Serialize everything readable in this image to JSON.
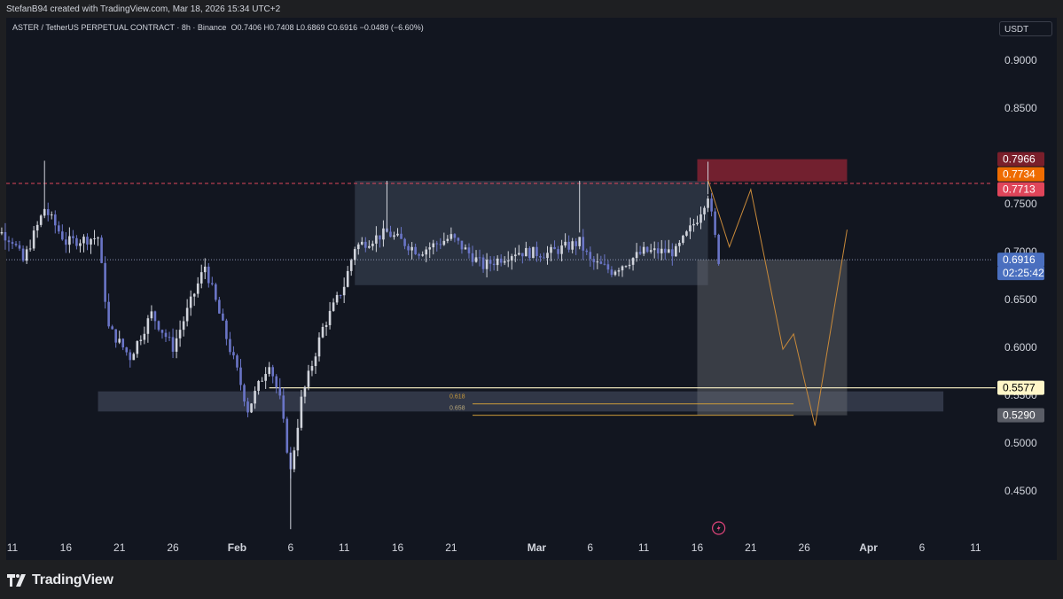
{
  "header": {
    "attribution": "StefanB94 created with TradingView.com, Mar 18, 2026 15:34 UTC+2"
  },
  "legend": {
    "symbol": "ASTER / TetherUS PERPETUAL CONTRACT · 8h · Binance",
    "open": "O0.7406",
    "high": "H0.7408",
    "low": "L0.6869",
    "close": "C0.6916",
    "change": "−0.0489 (−6.60%)"
  },
  "currency_button": "USDT",
  "footer": {
    "brand": "TradingView"
  },
  "colors": {
    "background": "#121620",
    "candle": "#d1d4dc",
    "candle_down": "#6a75c7",
    "stop_zone": "#b2283a",
    "target_path": "#c98a3a",
    "fib_line": "#c99a3a",
    "support_line": "#fff6c8"
  },
  "chart_data": {
    "type": "candlestick",
    "timeframe": "8h",
    "y_axis": {
      "ticks": [
        "0.9000",
        "0.8500",
        "0.7500",
        "0.7000",
        "0.6500",
        "0.6000",
        "0.5500",
        "0.5000",
        "0.4500"
      ],
      "tick_values": [
        0.9,
        0.85,
        0.75,
        0.7,
        0.65,
        0.6,
        0.55,
        0.5,
        0.45
      ],
      "range": [
        0.4,
        0.92
      ]
    },
    "x_axis": {
      "ticks": [
        "11",
        "16",
        "21",
        "26",
        "Feb",
        "6",
        "11",
        "16",
        "21",
        "Mar",
        "6",
        "11",
        "16",
        "21",
        "26",
        "Apr",
        "6",
        "11"
      ],
      "tick_dates": [
        "2026-01-11",
        "2026-01-16",
        "2026-01-21",
        "2026-01-26",
        "2026-02-01",
        "2026-02-06",
        "2026-02-11",
        "2026-02-16",
        "2026-02-21",
        "2026-03-01",
        "2026-03-06",
        "2026-03-11",
        "2026-03-16",
        "2026-03-21",
        "2026-03-26",
        "2026-04-01",
        "2026-04-06",
        "2026-04-11"
      ]
    },
    "price_labels": [
      {
        "value": "0.7966",
        "kind": "stop",
        "bg": "#7a1f2b",
        "fg": "#ffffff"
      },
      {
        "value": "0.7734",
        "kind": "entry",
        "bg": "#ef6c00",
        "fg": "#ffffff"
      },
      {
        "value": "0.7713",
        "kind": "prev_high",
        "bg": "#e0455a",
        "fg": "#ffffff"
      },
      {
        "value": "0.6916",
        "kind": "last",
        "bg": "#4a6fbf",
        "fg": "#ffffff"
      },
      {
        "value": "02:25:42",
        "kind": "countdown",
        "bg": "#4a6fbf",
        "fg": "#ffffff"
      },
      {
        "value": "0.5577",
        "kind": "support",
        "bg": "#fff6c8",
        "fg": "#000000"
      },
      {
        "value": "0.5290",
        "kind": "target",
        "bg": "#5a5d66",
        "fg": "#ffffff"
      }
    ],
    "fib_levels": [
      {
        "label": "0.618",
        "price": 0.541
      },
      {
        "label": "0.658",
        "price": 0.529
      }
    ],
    "zones": [
      {
        "name": "range-box",
        "start": "2026-02-12",
        "end": "2026-03-17",
        "low": 0.665,
        "high": 0.774
      },
      {
        "name": "demand-box",
        "start": "2026-01-19",
        "end": "2026-04-08",
        "low": 0.533,
        "high": 0.554
      },
      {
        "name": "short-stop-zone",
        "start": "2026-03-16",
        "end": "2026-03-30",
        "low": 0.7734,
        "high": 0.7966
      },
      {
        "name": "short-target-zone",
        "start": "2026-03-16",
        "end": "2026-03-30",
        "low": 0.529,
        "high": 0.6916
      }
    ],
    "horizontal_lines": [
      {
        "name": "prev-high-dashed",
        "price": 0.7713,
        "style": "dashed"
      },
      {
        "name": "support-line",
        "price": 0.5577,
        "style": "solid"
      }
    ],
    "projection_path": [
      {
        "date": "2026-03-17",
        "price": 0.775
      },
      {
        "date": "2026-03-19",
        "price": 0.705
      },
      {
        "date": "2026-03-21",
        "price": 0.765
      },
      {
        "date": "2026-03-24",
        "price": 0.598
      },
      {
        "date": "2026-03-25",
        "price": 0.614
      },
      {
        "date": "2026-03-27",
        "price": 0.518
      },
      {
        "date": "2026-03-30",
        "price": 0.723
      }
    ],
    "anchors": [
      {
        "date": "2026-01-08",
        "close": 0.735
      },
      {
        "date": "2026-01-11",
        "close": 0.712
      },
      {
        "date": "2026-01-12",
        "close": 0.69
      },
      {
        "date": "2026-01-14",
        "close": 0.745
      },
      {
        "date": "2026-01-16",
        "close": 0.71
      },
      {
        "date": "2026-01-19",
        "close": 0.715
      },
      {
        "date": "2026-01-20",
        "close": 0.62
      },
      {
        "date": "2026-01-22",
        "close": 0.59
      },
      {
        "date": "2026-01-24",
        "close": 0.635
      },
      {
        "date": "2026-01-26",
        "close": 0.6
      },
      {
        "date": "2026-01-29",
        "close": 0.685
      },
      {
        "date": "2026-01-31",
        "close": 0.61
      },
      {
        "date": "2026-02-01",
        "close": 0.575
      },
      {
        "date": "2026-02-02",
        "close": 0.535
      },
      {
        "date": "2026-02-04",
        "close": 0.585
      },
      {
        "date": "2026-02-05",
        "close": 0.545
      },
      {
        "date": "2026-02-06",
        "close": 0.47
      },
      {
        "date": "2026-02-07",
        "close": 0.545
      },
      {
        "date": "2026-02-09",
        "close": 0.62
      },
      {
        "date": "2026-02-11",
        "close": 0.665
      },
      {
        "date": "2026-02-12",
        "close": 0.705
      },
      {
        "date": "2026-02-15",
        "close": 0.72
      },
      {
        "date": "2026-02-18",
        "close": 0.7
      },
      {
        "date": "2026-02-21",
        "close": 0.715
      },
      {
        "date": "2026-02-24",
        "close": 0.685
      },
      {
        "date": "2026-02-27",
        "close": 0.7
      },
      {
        "date": "2026-03-02",
        "close": 0.698
      },
      {
        "date": "2026-03-05",
        "close": 0.71
      },
      {
        "date": "2026-03-06",
        "close": 0.69
      },
      {
        "date": "2026-03-08",
        "close": 0.68
      },
      {
        "date": "2026-03-11",
        "close": 0.7
      },
      {
        "date": "2026-03-14",
        "close": 0.7
      },
      {
        "date": "2026-03-16",
        "close": 0.735
      },
      {
        "date": "2026-03-17",
        "close": 0.76
      },
      {
        "date": "2026-03-18",
        "close": 0.6916
      }
    ]
  }
}
